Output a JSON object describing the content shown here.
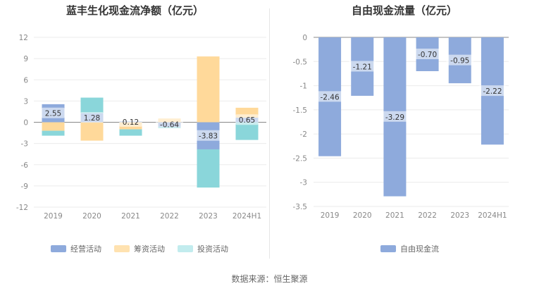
{
  "source_text": "数据来源：恒生聚源",
  "chart_data": [
    {
      "type": "bar",
      "stacked": true,
      "title": "蓝丰生化现金流净额（亿元）",
      "categories": [
        "2019",
        "2020",
        "2021",
        "2022",
        "2023",
        "2024H1"
      ],
      "ylim": [
        -12,
        12
      ],
      "yticks": [
        12,
        9,
        6,
        3,
        0,
        -3,
        -6,
        -9,
        -12
      ],
      "grid": true,
      "legend_position": "bottom",
      "series": [
        {
          "name": "经营活动",
          "color": "#8eaadc",
          "values": [
            2.55,
            1.28,
            0.12,
            -0.64,
            -3.83,
            0.65
          ]
        },
        {
          "name": "筹资活动",
          "color": "#ffd99a",
          "values": [
            -1.2,
            -2.6,
            -1.0,
            0.5,
            9.3,
            1.4
          ]
        },
        {
          "name": "投资活动",
          "color": "#8ad6da",
          "values": [
            -0.7,
            2.2,
            -0.9,
            -0.2,
            -5.4,
            -2.5
          ]
        }
      ],
      "data_labels": [
        "2.55",
        "1.28",
        "0.12",
        "-0.64",
        "-3.83",
        "0.65"
      ]
    },
    {
      "type": "bar",
      "title": "自由现金流量（亿元）",
      "categories": [
        "2019",
        "2020",
        "2021",
        "2022",
        "2023",
        "2024H1"
      ],
      "ylim": [
        -3.5,
        0
      ],
      "yticks": [
        0,
        -0.5,
        -1,
        -1.5,
        -2,
        -2.5,
        -3,
        -3.5
      ],
      "grid": true,
      "legend_position": "bottom",
      "series": [
        {
          "name": "自由现金流",
          "color": "#8eaadc",
          "values": [
            -2.46,
            -1.21,
            -3.29,
            -0.7,
            -0.95,
            -2.22
          ]
        }
      ],
      "data_labels": [
        "-2.46",
        "-1.21",
        "-3.29",
        "-0.70",
        "-0.95",
        "-2.22"
      ]
    }
  ]
}
